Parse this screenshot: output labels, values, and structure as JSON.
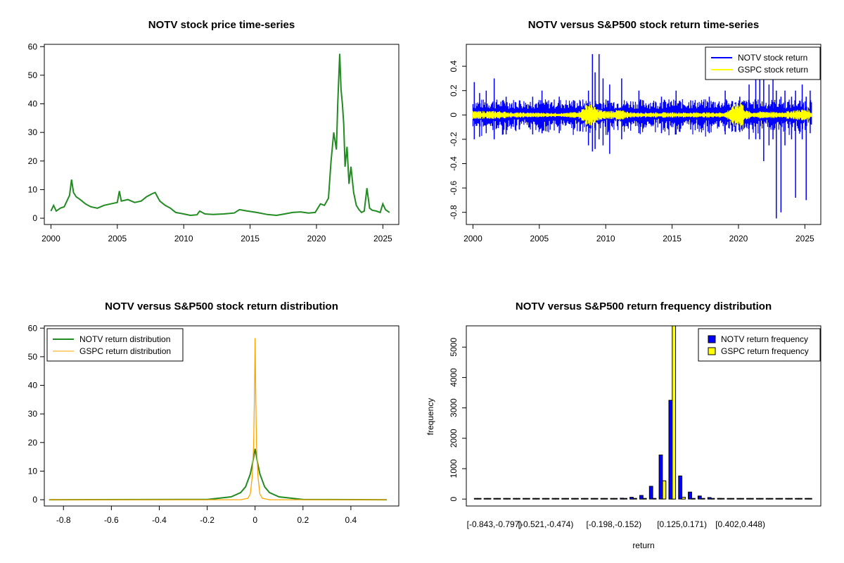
{
  "chart_data": [
    {
      "id": "p1",
      "type": "line",
      "title": "NOTV stock price time-series",
      "xlabel": "",
      "ylabel": "",
      "xlim": [
        1999.5,
        2026.2
      ],
      "ylim": [
        -2.2,
        60.8
      ],
      "xticks": [
        2000,
        2005,
        2010,
        2015,
        2020,
        2025
      ],
      "yticks": [
        0,
        10,
        20,
        30,
        40,
        50,
        60
      ],
      "series": [
        {
          "color": "#228B22",
          "x": [
            2000.0,
            2000.2,
            2000.4,
            2000.7,
            2001.0,
            2001.2,
            2001.4,
            2001.55,
            2001.7,
            2001.9,
            2002.2,
            2002.6,
            2003.0,
            2003.5,
            2004.0,
            2004.5,
            2005.0,
            2005.15,
            2005.3,
            2005.8,
            2006.3,
            2006.8,
            2007.2,
            2007.6,
            2007.85,
            2008.2,
            2008.6,
            2009.0,
            2009.4,
            2010.0,
            2010.5,
            2011.0,
            2011.2,
            2011.6,
            2012.2,
            2013.0,
            2013.8,
            2014.2,
            2014.8,
            2015.5,
            2016.3,
            2017.0,
            2017.6,
            2018.2,
            2018.8,
            2019.4,
            2019.9,
            2020.3,
            2020.6,
            2020.9,
            2021.1,
            2021.3,
            2021.5,
            2021.6,
            2021.75,
            2021.85,
            2021.95,
            2022.05,
            2022.15,
            2022.3,
            2022.45,
            2022.6,
            2022.8,
            2023.0,
            2023.2,
            2023.4,
            2023.6,
            2023.8,
            2024.0,
            2024.2,
            2024.5,
            2024.8,
            2025.0,
            2025.2,
            2025.5
          ],
          "values": [
            2.5,
            4.5,
            2.5,
            3.5,
            4.0,
            6.0,
            8.0,
            13.5,
            9.0,
            7.5,
            6.5,
            5.0,
            4.0,
            3.5,
            4.5,
            5.0,
            5.5,
            9.5,
            6.0,
            6.5,
            5.5,
            6.0,
            7.5,
            8.5,
            9.0,
            6.0,
            4.5,
            3.5,
            2.0,
            1.5,
            1.0,
            1.2,
            2.5,
            1.5,
            1.3,
            1.5,
            1.8,
            3.0,
            2.5,
            2.0,
            1.3,
            1.0,
            1.5,
            2.0,
            2.2,
            1.8,
            2.0,
            5.0,
            4.5,
            7.0,
            20.0,
            30.0,
            24.0,
            40.0,
            57.5,
            45.0,
            40.0,
            33.0,
            18.0,
            25.0,
            12.0,
            18.0,
            9.0,
            4.5,
            3.0,
            2.0,
            2.5,
            10.5,
            3.5,
            2.8,
            2.5,
            2.0,
            5.0,
            3.0,
            2.0
          ]
        }
      ]
    },
    {
      "id": "p2",
      "type": "line",
      "title": "NOTV versus S&P500 stock return time-series",
      "xlabel": "",
      "ylabel": "",
      "xlim": [
        1999.5,
        2026.2
      ],
      "ylim": [
        -0.9,
        0.58
      ],
      "xticks": [
        2000,
        2005,
        2010,
        2015,
        2020,
        2025
      ],
      "yticks": [
        -0.8,
        -0.6,
        -0.4,
        -0.2,
        0.0,
        0.2,
        0.4
      ],
      "legend": {
        "position": "top-right",
        "entries": [
          "NOTV stock return",
          "GSPC stock return"
        ]
      },
      "series": [
        {
          "name": "NOTV stock return",
          "color": "#0000FF",
          "spikes": [
            [
              2000.1,
              0.27,
              -0.2
            ],
            [
              2000.5,
              0.18,
              -0.18
            ],
            [
              2001.0,
              0.2,
              -0.15
            ],
            [
              2001.6,
              0.3,
              -0.2
            ],
            [
              2002.5,
              0.15,
              -0.16
            ],
            [
              2003.5,
              0.12,
              -0.12
            ],
            [
              2004.5,
              0.15,
              -0.16
            ],
            [
              2005.2,
              0.2,
              -0.15
            ],
            [
              2006.5,
              0.15,
              -0.15
            ],
            [
              2007.6,
              0.12,
              -0.12
            ],
            [
              2008.7,
              0.2,
              -0.25
            ],
            [
              2009.0,
              0.5,
              -0.3
            ],
            [
              2009.2,
              0.35,
              -0.28
            ],
            [
              2009.5,
              0.5,
              -0.2
            ],
            [
              2009.8,
              0.3,
              -0.25
            ],
            [
              2010.3,
              0.25,
              -0.32
            ],
            [
              2011.2,
              0.3,
              -0.2
            ],
            [
              2012.5,
              0.2,
              -0.15
            ],
            [
              2014.2,
              0.15,
              -0.15
            ],
            [
              2015.3,
              0.2,
              -0.16
            ],
            [
              2016.4,
              0.12,
              -0.12
            ],
            [
              2017.8,
              0.15,
              -0.15
            ],
            [
              2019.0,
              0.2,
              -0.16
            ],
            [
              2020.1,
              0.15,
              -0.14
            ],
            [
              2020.8,
              0.25,
              -0.2
            ],
            [
              2021.3,
              0.3,
              -0.2
            ],
            [
              2021.6,
              0.3,
              -0.2
            ],
            [
              2021.9,
              0.35,
              -0.38
            ],
            [
              2022.3,
              0.25,
              -0.25
            ],
            [
              2022.6,
              0.3,
              -0.2
            ],
            [
              2022.85,
              0.2,
              -0.85
            ],
            [
              2023.2,
              0.15,
              -0.8
            ],
            [
              2023.5,
              0.2,
              -0.25
            ],
            [
              2024.0,
              0.15,
              -0.2
            ],
            [
              2024.3,
              0.2,
              -0.68
            ],
            [
              2024.8,
              0.25,
              -0.2
            ],
            [
              2025.1,
              0.15,
              -0.7
            ],
            [
              2025.4,
              0.2,
              -0.15
            ]
          ]
        },
        {
          "name": "GSPC stock return",
          "color": "#FFFF00",
          "envelope": [
            [
              2000.0,
              0.03
            ],
            [
              2002.0,
              0.03
            ],
            [
              2003.0,
              0.02
            ],
            [
              2007.0,
              0.015
            ],
            [
              2008.0,
              0.03
            ],
            [
              2008.8,
              0.1
            ],
            [
              2009.3,
              0.05
            ],
            [
              2010.0,
              0.03
            ],
            [
              2011.0,
              0.04
            ],
            [
              2012.0,
              0.02
            ],
            [
              2019.0,
              0.02
            ],
            [
              2020.2,
              0.12
            ],
            [
              2020.5,
              0.04
            ],
            [
              2021.0,
              0.02
            ],
            [
              2022.0,
              0.03
            ],
            [
              2023.0,
              0.02
            ],
            [
              2025.2,
              0.05
            ],
            [
              2025.5,
              0.02
            ]
          ]
        }
      ]
    },
    {
      "id": "p3",
      "type": "line",
      "title": "NOTV versus S&P500 stock return distribution",
      "xlabel": "",
      "ylabel": "",
      "xlim": [
        -0.88,
        0.6
      ],
      "ylim": [
        -2.2,
        60.8
      ],
      "xticks": [
        -0.8,
        -0.6,
        -0.4,
        -0.2,
        0.0,
        0.2,
        0.4
      ],
      "yticks": [
        0,
        10,
        20,
        30,
        40,
        50,
        60
      ],
      "legend": {
        "position": "top-left",
        "entries": [
          "NOTV return distribution",
          "GSPC return distribution"
        ]
      },
      "series": [
        {
          "name": "NOTV return distribution",
          "color": "#228B22",
          "x": [
            -0.86,
            -0.2,
            -0.1,
            -0.06,
            -0.04,
            -0.02,
            -0.01,
            0.0,
            0.01,
            0.02,
            0.04,
            0.06,
            0.1,
            0.2,
            0.55
          ],
          "values": [
            0.0,
            0.1,
            1.0,
            2.5,
            4.5,
            9.0,
            13.0,
            17.8,
            13.0,
            9.0,
            4.5,
            2.5,
            1.0,
            0.1,
            0.0
          ]
        },
        {
          "name": "GSPC return distribution",
          "color": "#FFA500",
          "x": [
            -0.86,
            -0.06,
            -0.03,
            -0.02,
            -0.012,
            -0.006,
            -0.003,
            0.0,
            0.003,
            0.006,
            0.012,
            0.02,
            0.03,
            0.06,
            0.55
          ],
          "values": [
            0.0,
            0.0,
            0.5,
            2.0,
            8.0,
            19.0,
            35.0,
            56.5,
            35.0,
            19.0,
            8.0,
            2.0,
            0.5,
            0.0,
            0.0
          ]
        }
      ]
    },
    {
      "id": "p4",
      "type": "bar",
      "title": "NOTV versus S&P500 return frequency distribution",
      "xlabel": "return",
      "ylabel": "frequency",
      "ylim": [
        0,
        5700
      ],
      "yticks": [
        0,
        1000,
        2000,
        3000,
        4000,
        5000
      ],
      "xtick_labels": [
        "[-0.843,-0.797)",
        "[-0.521,-0.474)",
        "[-0.198,-0.152)",
        "[0.125,0.171)",
        "[0.402,0.448)"
      ],
      "xtick_label_bins": [
        0,
        7,
        14,
        21,
        27
      ],
      "legend": {
        "position": "top-right",
        "entries": [
          "NOTV return frequency",
          "GSPC return frequency"
        ]
      },
      "series": [
        {
          "name": "NOTV return frequency",
          "color": "#0000FF",
          "values": [
            1,
            0,
            0,
            0,
            0,
            0,
            0,
            0,
            0,
            0,
            1,
            2,
            3,
            5,
            10,
            30,
            60,
            120,
            420,
            1450,
            3250,
            760,
            230,
            100,
            50,
            25,
            12,
            5,
            3,
            1,
            0,
            0,
            0,
            0,
            0
          ]
        },
        {
          "name": "GSPC return frequency",
          "color": "#FFFF00",
          "values": [
            0,
            0,
            0,
            0,
            0,
            0,
            0,
            0,
            0,
            0,
            0,
            0,
            0,
            0,
            0,
            0,
            0,
            0,
            5,
            600,
            5700,
            60,
            0,
            0,
            0,
            0,
            0,
            0,
            0,
            0,
            0,
            0,
            0,
            0,
            0
          ]
        }
      ]
    }
  ]
}
